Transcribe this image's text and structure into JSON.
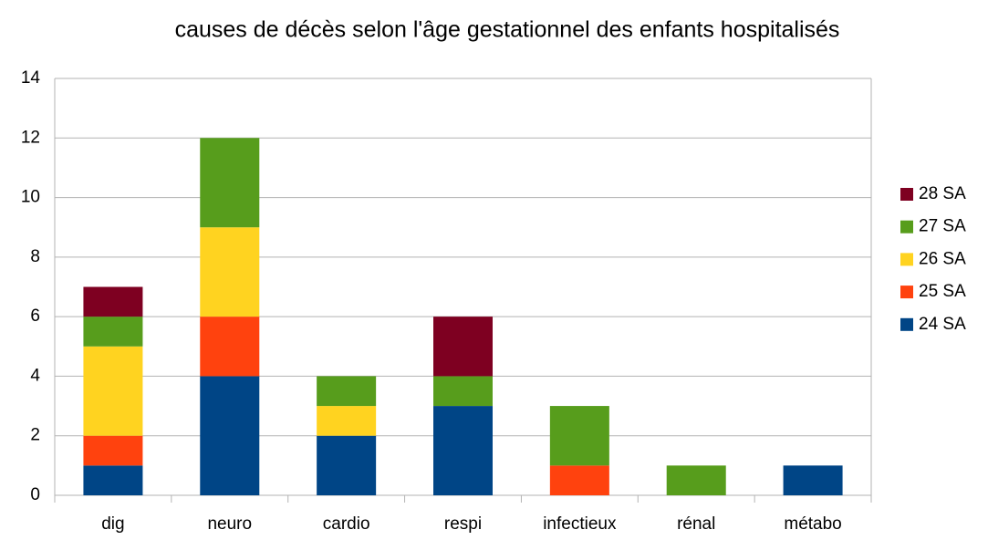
{
  "chart_data": {
    "type": "stacked_bar",
    "title": "causes de décès selon l'âge gestationnel des enfants hospitalisés",
    "categories": [
      "dig",
      "neuro",
      "cardio",
      "respi",
      "infectieux",
      "rénal",
      "métabo"
    ],
    "series": [
      {
        "name": "24 SA",
        "color": "#004586",
        "values": [
          1,
          4,
          2,
          3,
          0,
          0,
          1
        ]
      },
      {
        "name": "25 SA",
        "color": "#ff420e",
        "values": [
          1,
          2,
          0,
          0,
          1,
          0,
          0
        ]
      },
      {
        "name": "26 SA",
        "color": "#ffd320",
        "values": [
          3,
          3,
          1,
          0,
          0,
          0,
          0
        ]
      },
      {
        "name": "27 SA",
        "color": "#579d1c",
        "values": [
          1,
          3,
          1,
          1,
          2,
          1,
          0
        ]
      },
      {
        "name": "28 SA",
        "color": "#7e0021",
        "values": [
          1,
          0,
          0,
          2,
          0,
          0,
          0
        ]
      }
    ],
    "ylim": [
      0,
      14
    ],
    "yticks": [
      0,
      2,
      4,
      6,
      8,
      10,
      12,
      14
    ],
    "grid": true,
    "legend": "right"
  }
}
